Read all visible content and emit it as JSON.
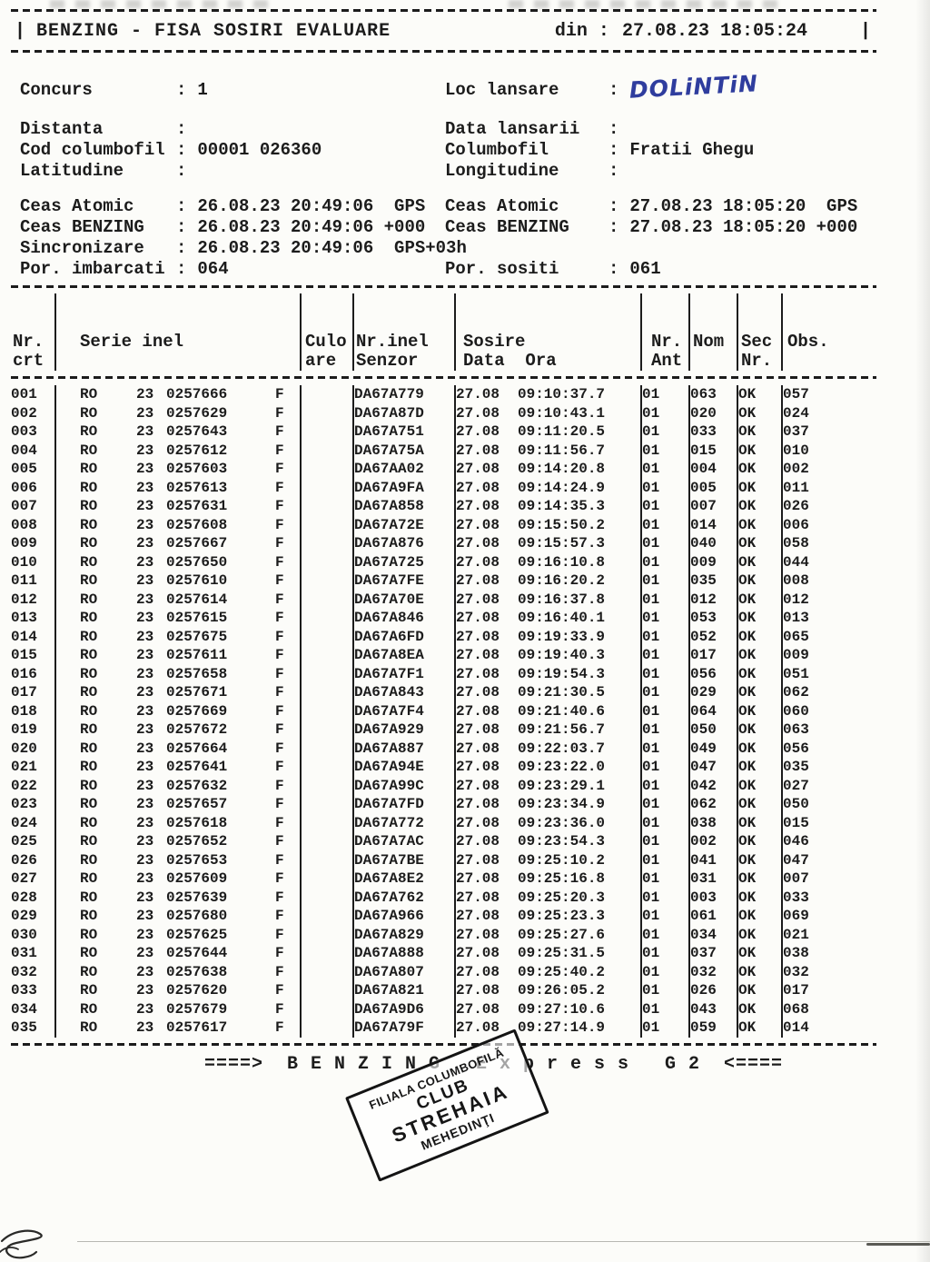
{
  "colors": {
    "ink": "#1c1c1c",
    "handwriting_blue": "#2f3d9e",
    "paper": "#fcfcf9"
  },
  "separator": ":",
  "header": {
    "left_bar": "|",
    "title": "BENZING - FISA SOSIRI EVALUARE",
    "din_label": "din :",
    "din_value": "27.08.23 18:05:24",
    "right_bar": "|"
  },
  "info": {
    "concurs": {
      "label": "Concurs",
      "value": "1"
    },
    "loc_lansare": {
      "label": "Loc lansare",
      "value": "DOLiNTiN"
    },
    "distanta": {
      "label": "Distanta",
      "value": ""
    },
    "data_lansarii": {
      "label": "Data lansarii",
      "value": ""
    },
    "cod_columbofil": {
      "label": "Cod columbofil",
      "value": "00001 026360"
    },
    "columbofil": {
      "label": "Columbofil",
      "value": "Fratii Ghegu"
    },
    "latitudine": {
      "label": "Latitudine",
      "value": ""
    },
    "longitudine": {
      "label": "Longitudine",
      "value": ""
    }
  },
  "clock": {
    "lines": [
      {
        "left": {
          "label": "Ceas Atomic",
          "value": "26.08.23 20:49:06  GPS"
        },
        "right": {
          "label": "Ceas Atomic",
          "value": "27.08.23 18:05:20  GPS"
        }
      },
      {
        "left": {
          "label": "Ceas BENZING",
          "value": "26.08.23 20:49:06 +000"
        },
        "right": {
          "label": "Ceas BENZING",
          "value": "27.08.23 18:05:20 +000"
        }
      },
      {
        "left": {
          "label": "Sincronizare",
          "value": "26.08.23 20:49:06  GPS+03h"
        },
        "right": {
          "label": "",
          "value": ""
        }
      },
      {
        "left": {
          "label": "Por. imbarcati",
          "value": "064"
        },
        "right": {
          "label": "Por. sositi",
          "value": "061"
        }
      }
    ]
  },
  "table": {
    "columns": {
      "crt": [
        "Nr.",
        "crt"
      ],
      "serie": [
        "Serie inel",
        ""
      ],
      "culo": [
        "Culo",
        "are"
      ],
      "senzor": [
        "Nr.inel",
        "Senzor"
      ],
      "sosire": [
        "Sosire",
        "Data  Ora"
      ],
      "ant": [
        "Nr.",
        "Ant"
      ],
      "nom": [
        "Nom",
        ""
      ],
      "sec": [
        "Sec",
        "Nr."
      ],
      "obs": [
        "Obs.",
        ""
      ]
    },
    "rows": [
      [
        "001",
        "RO",
        "23",
        "0257666",
        "F",
        "",
        "DA67A779",
        "27.08",
        "09:10:37.7",
        "01",
        "063",
        "OK",
        "057"
      ],
      [
        "002",
        "RO",
        "23",
        "0257629",
        "F",
        "",
        "DA67A87D",
        "27.08",
        "09:10:43.1",
        "01",
        "020",
        "OK",
        "024"
      ],
      [
        "003",
        "RO",
        "23",
        "0257643",
        "F",
        "",
        "DA67A751",
        "27.08",
        "09:11:20.5",
        "01",
        "033",
        "OK",
        "037"
      ],
      [
        "004",
        "RO",
        "23",
        "0257612",
        "F",
        "",
        "DA67A75A",
        "27.08",
        "09:11:56.7",
        "01",
        "015",
        "OK",
        "010"
      ],
      [
        "005",
        "RO",
        "23",
        "0257603",
        "F",
        "",
        "DA67AA02",
        "27.08",
        "09:14:20.8",
        "01",
        "004",
        "OK",
        "002"
      ],
      [
        "006",
        "RO",
        "23",
        "0257613",
        "F",
        "",
        "DA67A9FA",
        "27.08",
        "09:14:24.9",
        "01",
        "005",
        "OK",
        "011"
      ],
      [
        "007",
        "RO",
        "23",
        "0257631",
        "F",
        "",
        "DA67A858",
        "27.08",
        "09:14:35.3",
        "01",
        "007",
        "OK",
        "026"
      ],
      [
        "008",
        "RO",
        "23",
        "0257608",
        "F",
        "",
        "DA67A72E",
        "27.08",
        "09:15:50.2",
        "01",
        "014",
        "OK",
        "006"
      ],
      [
        "009",
        "RO",
        "23",
        "0257667",
        "F",
        "",
        "DA67A876",
        "27.08",
        "09:15:57.3",
        "01",
        "040",
        "OK",
        "058"
      ],
      [
        "010",
        "RO",
        "23",
        "0257650",
        "F",
        "",
        "DA67A725",
        "27.08",
        "09:16:10.8",
        "01",
        "009",
        "OK",
        "044"
      ],
      [
        "011",
        "RO",
        "23",
        "0257610",
        "F",
        "",
        "DA67A7FE",
        "27.08",
        "09:16:20.2",
        "01",
        "035",
        "OK",
        "008"
      ],
      [
        "012",
        "RO",
        "23",
        "0257614",
        "F",
        "",
        "DA67A70E",
        "27.08",
        "09:16:37.8",
        "01",
        "012",
        "OK",
        "012"
      ],
      [
        "013",
        "RO",
        "23",
        "0257615",
        "F",
        "",
        "DA67A846",
        "27.08",
        "09:16:40.1",
        "01",
        "053",
        "OK",
        "013"
      ],
      [
        "014",
        "RO",
        "23",
        "0257675",
        "F",
        "",
        "DA67A6FD",
        "27.08",
        "09:19:33.9",
        "01",
        "052",
        "OK",
        "065"
      ],
      [
        "015",
        "RO",
        "23",
        "0257611",
        "F",
        "",
        "DA67A8EA",
        "27.08",
        "09:19:40.3",
        "01",
        "017",
        "OK",
        "009"
      ],
      [
        "016",
        "RO",
        "23",
        "0257658",
        "F",
        "",
        "DA67A7F1",
        "27.08",
        "09:19:54.3",
        "01",
        "056",
        "OK",
        "051"
      ],
      [
        "017",
        "RO",
        "23",
        "0257671",
        "F",
        "",
        "DA67A843",
        "27.08",
        "09:21:30.5",
        "01",
        "029",
        "OK",
        "062"
      ],
      [
        "018",
        "RO",
        "23",
        "0257669",
        "F",
        "",
        "DA67A7F4",
        "27.08",
        "09:21:40.6",
        "01",
        "064",
        "OK",
        "060"
      ],
      [
        "019",
        "RO",
        "23",
        "0257672",
        "F",
        "",
        "DA67A929",
        "27.08",
        "09:21:56.7",
        "01",
        "050",
        "OK",
        "063"
      ],
      [
        "020",
        "RO",
        "23",
        "0257664",
        "F",
        "",
        "DA67A887",
        "27.08",
        "09:22:03.7",
        "01",
        "049",
        "OK",
        "056"
      ],
      [
        "021",
        "RO",
        "23",
        "0257641",
        "F",
        "",
        "DA67A94E",
        "27.08",
        "09:23:22.0",
        "01",
        "047",
        "OK",
        "035"
      ],
      [
        "022",
        "RO",
        "23",
        "0257632",
        "F",
        "",
        "DA67A99C",
        "27.08",
        "09:23:29.1",
        "01",
        "042",
        "OK",
        "027"
      ],
      [
        "023",
        "RO",
        "23",
        "0257657",
        "F",
        "",
        "DA67A7FD",
        "27.08",
        "09:23:34.9",
        "01",
        "062",
        "OK",
        "050"
      ],
      [
        "024",
        "RO",
        "23",
        "0257618",
        "F",
        "",
        "DA67A772",
        "27.08",
        "09:23:36.0",
        "01",
        "038",
        "OK",
        "015"
      ],
      [
        "025",
        "RO",
        "23",
        "0257652",
        "F",
        "",
        "DA67A7AC",
        "27.08",
        "09:23:54.3",
        "01",
        "002",
        "OK",
        "046"
      ],
      [
        "026",
        "RO",
        "23",
        "0257653",
        "F",
        "",
        "DA67A7BE",
        "27.08",
        "09:25:10.2",
        "01",
        "041",
        "OK",
        "047"
      ],
      [
        "027",
        "RO",
        "23",
        "0257609",
        "F",
        "",
        "DA67A8E2",
        "27.08",
        "09:25:16.8",
        "01",
        "031",
        "OK",
        "007"
      ],
      [
        "028",
        "RO",
        "23",
        "0257639",
        "F",
        "",
        "DA67A762",
        "27.08",
        "09:25:20.3",
        "01",
        "003",
        "OK",
        "033"
      ],
      [
        "029",
        "RO",
        "23",
        "0257680",
        "F",
        "",
        "DA67A966",
        "27.08",
        "09:25:23.3",
        "01",
        "061",
        "OK",
        "069"
      ],
      [
        "030",
        "RO",
        "23",
        "0257625",
        "F",
        "",
        "DA67A829",
        "27.08",
        "09:25:27.6",
        "01",
        "034",
        "OK",
        "021"
      ],
      [
        "031",
        "RO",
        "23",
        "0257644",
        "F",
        "",
        "DA67A888",
        "27.08",
        "09:25:31.5",
        "01",
        "037",
        "OK",
        "038"
      ],
      [
        "032",
        "RO",
        "23",
        "0257638",
        "F",
        "",
        "DA67A807",
        "27.08",
        "09:25:40.2",
        "01",
        "032",
        "OK",
        "032"
      ],
      [
        "033",
        "RO",
        "23",
        "0257620",
        "F",
        "",
        "DA67A821",
        "27.08",
        "09:26:05.2",
        "01",
        "026",
        "OK",
        "017"
      ],
      [
        "034",
        "RO",
        "23",
        "0257679",
        "F",
        "",
        "DA67A9D6",
        "27.08",
        "09:27:10.6",
        "01",
        "043",
        "OK",
        "068"
      ],
      [
        "035",
        "RO",
        "23",
        "0257617",
        "F",
        "",
        "DA67A79F",
        "27.08",
        "09:27:14.9",
        "01",
        "059",
        "OK",
        "014"
      ]
    ]
  },
  "footer": {
    "banner": "====>  B E N Z I N G   E x p r e s s   G 2  <===="
  },
  "stamp": {
    "line1": "FILIALA COLUMBOFILĂ",
    "line2": "CLUB",
    "line3": "STREHAIA",
    "line4": "MEHEDINŢI"
  }
}
